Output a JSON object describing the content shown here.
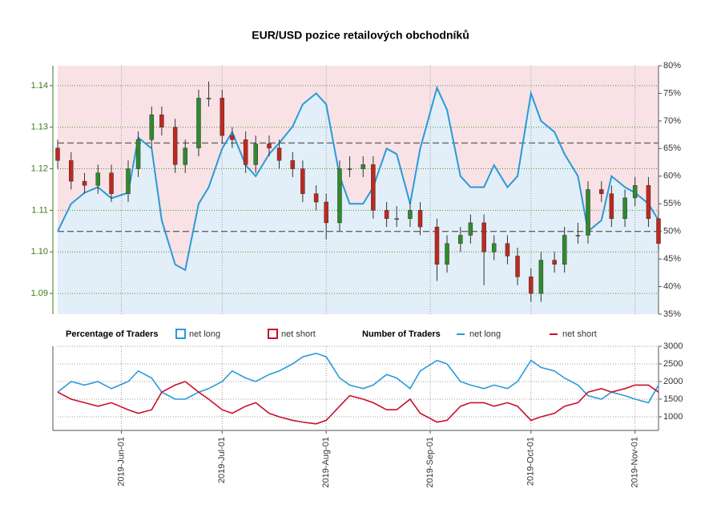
{
  "chart_data": [
    {
      "type": "candlestick",
      "title": "EUR/USD pozice retailových obchodníků",
      "x": [
        "2019-05-13",
        "2019-05-17",
        "2019-05-21",
        "2019-05-25",
        "2019-05-29",
        "2019-06-03",
        "2019-06-06",
        "2019-06-10",
        "2019-06-13",
        "2019-06-17",
        "2019-06-20",
        "2019-06-24",
        "2019-06-27",
        "2019-07-01",
        "2019-07-04",
        "2019-07-08",
        "2019-07-11",
        "2019-07-15",
        "2019-07-18",
        "2019-07-22",
        "2019-07-25",
        "2019-07-29",
        "2019-08-01",
        "2019-08-05",
        "2019-08-08",
        "2019-08-12",
        "2019-08-15",
        "2019-08-19",
        "2019-08-22",
        "2019-08-26",
        "2019-08-29",
        "2019-09-03",
        "2019-09-06",
        "2019-09-10",
        "2019-09-13",
        "2019-09-17",
        "2019-09-20",
        "2019-09-24",
        "2019-09-27",
        "2019-10-01",
        "2019-10-04",
        "2019-10-08",
        "2019-10-11",
        "2019-10-15",
        "2019-10-18",
        "2019-10-22",
        "2019-10-25",
        "2019-10-29",
        "2019-11-01",
        "2019-11-05",
        "2019-11-08"
      ],
      "open": [
        1.125,
        1.122,
        1.117,
        1.116,
        1.119,
        1.114,
        1.12,
        1.127,
        1.133,
        1.13,
        1.121,
        1.125,
        1.137,
        1.137,
        1.128,
        1.127,
        1.121,
        1.126,
        1.125,
        1.122,
        1.12,
        1.114,
        1.112,
        1.107,
        1.12,
        1.12,
        1.121,
        1.11,
        1.108,
        1.108,
        1.11,
        1.106,
        1.097,
        1.102,
        1.104,
        1.107,
        1.1,
        1.102,
        1.099,
        1.094,
        1.09,
        1.098,
        1.097,
        1.104,
        1.104,
        1.115,
        1.114,
        1.108,
        1.113,
        1.116,
        1.108
      ],
      "high": [
        1.127,
        1.124,
        1.119,
        1.121,
        1.121,
        1.122,
        1.129,
        1.135,
        1.135,
        1.132,
        1.127,
        1.139,
        1.141,
        1.139,
        1.13,
        1.129,
        1.128,
        1.128,
        1.127,
        1.124,
        1.122,
        1.116,
        1.114,
        1.122,
        1.123,
        1.123,
        1.123,
        1.112,
        1.111,
        1.112,
        1.112,
        1.108,
        1.104,
        1.106,
        1.109,
        1.109,
        1.104,
        1.104,
        1.101,
        1.096,
        1.1,
        1.1,
        1.106,
        1.107,
        1.117,
        1.117,
        1.116,
        1.115,
        1.118,
        1.118,
        1.11
      ],
      "low": [
        1.12,
        1.115,
        1.114,
        1.114,
        1.112,
        1.112,
        1.118,
        1.125,
        1.128,
        1.119,
        1.119,
        1.123,
        1.135,
        1.126,
        1.125,
        1.119,
        1.119,
        1.123,
        1.12,
        1.118,
        1.112,
        1.11,
        1.103,
        1.105,
        1.118,
        1.118,
        1.108,
        1.106,
        1.106,
        1.106,
        1.104,
        1.093,
        1.095,
        1.1,
        1.102,
        1.092,
        1.098,
        1.097,
        1.092,
        1.088,
        1.088,
        1.095,
        1.095,
        1.102,
        1.102,
        1.112,
        1.106,
        1.106,
        1.111,
        1.106,
        1.1
      ],
      "close": [
        1.122,
        1.117,
        1.116,
        1.119,
        1.114,
        1.12,
        1.127,
        1.133,
        1.13,
        1.121,
        1.125,
        1.137,
        1.137,
        1.128,
        1.127,
        1.121,
        1.126,
        1.125,
        1.122,
        1.12,
        1.114,
        1.112,
        1.107,
        1.12,
        1.12,
        1.121,
        1.11,
        1.108,
        1.108,
        1.11,
        1.106,
        1.097,
        1.102,
        1.104,
        1.107,
        1.1,
        1.102,
        1.099,
        1.094,
        1.09,
        1.098,
        1.097,
        1.104,
        1.104,
        1.115,
        1.114,
        1.108,
        1.113,
        1.116,
        1.108,
        1.102
      ],
      "up_color": "#2e8b2e",
      "down_color": "#c0281e",
      "ylim": [
        1.085,
        1.1448
      ],
      "yticks": [
        1.09,
        {
          "value": 1.1,
          "label": "1.10"
        },
        1.11,
        1.12,
        1.13,
        1.14
      ],
      "y2lim": [
        35,
        80
      ],
      "y2ticks": [
        {
          "value": 35,
          "label": "35%"
        },
        {
          "value": 40,
          "label": "40%"
        },
        {
          "value": 45,
          "label": "45%"
        },
        {
          "value": 50,
          "label": "50%"
        },
        {
          "value": 55,
          "label": "55%"
        },
        {
          "value": 60,
          "label": "60%"
        },
        {
          "value": 65,
          "label": "65%"
        },
        {
          "value": 70,
          "label": "70%"
        },
        {
          "value": 75,
          "label": "75%"
        },
        {
          "value": 80,
          "label": "80%"
        }
      ],
      "y2_reference_lines": [
        50,
        66
      ],
      "legend_title": "Percentage of Traders",
      "series": [
        {
          "name": "net long",
          "color": "#2a9ad8",
          "axis": "y2",
          "values": [
            50,
            55,
            57,
            58,
            56,
            57,
            67,
            65,
            52,
            44,
            43,
            55,
            58,
            65,
            68,
            62,
            60,
            64,
            66,
            69,
            73,
            75,
            73,
            60,
            55,
            55,
            58,
            65,
            64,
            55,
            65,
            76,
            72,
            60,
            58,
            58,
            62,
            58,
            60,
            75,
            70,
            68,
            64,
            60,
            50,
            52,
            60,
            58,
            57,
            55,
            52
          ]
        }
      ],
      "short_area": {
        "name": "net short",
        "color": "#c8102e"
      },
      "grid": true
    },
    {
      "type": "line",
      "legend_title": "Number of Traders",
      "x": [
        "2019-05-13",
        "2019-05-17",
        "2019-05-21",
        "2019-05-25",
        "2019-05-29",
        "2019-06-03",
        "2019-06-06",
        "2019-06-10",
        "2019-06-13",
        "2019-06-17",
        "2019-06-20",
        "2019-06-24",
        "2019-06-27",
        "2019-07-01",
        "2019-07-04",
        "2019-07-08",
        "2019-07-11",
        "2019-07-15",
        "2019-07-18",
        "2019-07-22",
        "2019-07-25",
        "2019-07-29",
        "2019-08-01",
        "2019-08-05",
        "2019-08-08",
        "2019-08-12",
        "2019-08-15",
        "2019-08-19",
        "2019-08-22",
        "2019-08-26",
        "2019-08-29",
        "2019-09-03",
        "2019-09-06",
        "2019-09-10",
        "2019-09-13",
        "2019-09-17",
        "2019-09-20",
        "2019-09-24",
        "2019-09-27",
        "2019-10-01",
        "2019-10-04",
        "2019-10-08",
        "2019-10-11",
        "2019-10-15",
        "2019-10-18",
        "2019-10-22",
        "2019-10-25",
        "2019-10-29",
        "2019-11-01",
        "2019-11-05",
        "2019-11-08"
      ],
      "xlim": [
        "2019-05-13",
        "2019-11-08"
      ],
      "xticks": [
        {
          "value": "2019-06-01",
          "label": "2019-Jun-01"
        },
        {
          "value": "2019-07-01",
          "label": "2019-Jul-01"
        },
        {
          "value": "2019-08-01",
          "label": "2019-Aug-01"
        },
        {
          "value": "2019-09-01",
          "label": "2019-Sep-01"
        },
        {
          "value": "2019-10-01",
          "label": "2019-Oct-01"
        },
        {
          "value": "2019-11-01",
          "label": "2019-Nov-01"
        }
      ],
      "ylim": [
        614,
        3000
      ],
      "yticks": [
        1000,
        1500,
        2000,
        2500,
        3000
      ],
      "series": [
        {
          "name": "net long",
          "color": "#2a9ad8",
          "values": [
            1700,
            2000,
            1900,
            2000,
            1800,
            2000,
            2300,
            2100,
            1700,
            1500,
            1500,
            1700,
            1800,
            2000,
            2300,
            2100,
            2000,
            2200,
            2300,
            2500,
            2700,
            2800,
            2700,
            2100,
            1900,
            1800,
            1900,
            2200,
            2100,
            1800,
            2300,
            2600,
            2500,
            2000,
            1900,
            1800,
            1900,
            1800,
            2000,
            2600,
            2400,
            2300,
            2100,
            1900,
            1600,
            1500,
            1700,
            1600,
            1500,
            1400,
            1900
          ]
        },
        {
          "name": "net short",
          "color": "#c8102e",
          "values": [
            1700,
            1500,
            1400,
            1300,
            1400,
            1200,
            1100,
            1200,
            1700,
            1900,
            2000,
            1700,
            1500,
            1200,
            1100,
            1300,
            1400,
            1100,
            1000,
            900,
            850,
            800,
            900,
            1300,
            1600,
            1500,
            1400,
            1200,
            1200,
            1500,
            1100,
            850,
            900,
            1300,
            1400,
            1400,
            1300,
            1400,
            1300,
            900,
            1000,
            1100,
            1300,
            1400,
            1700,
            1800,
            1700,
            1800,
            1900,
            1900,
            1700
          ]
        }
      ],
      "grid": true
    }
  ]
}
